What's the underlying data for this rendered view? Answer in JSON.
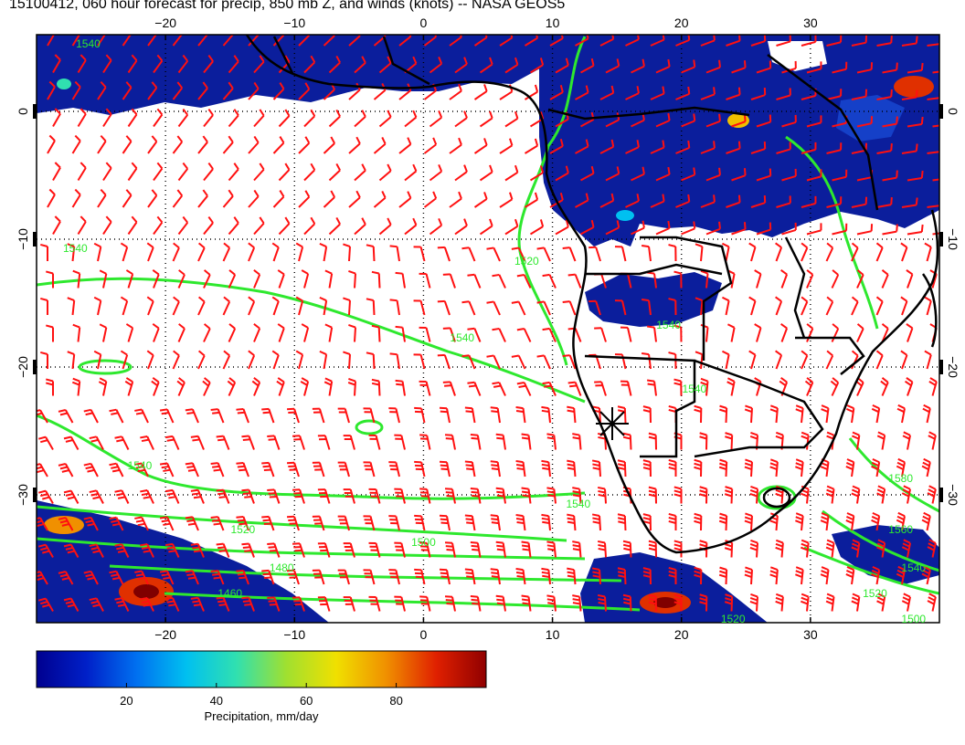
{
  "title": "15100412, 060 hour forecast for precip, 850 mb Z, and winds (knots) -- NASA GEOS5",
  "map": {
    "lon_range": [
      -30,
      40
    ],
    "lat_range": [
      -40,
      6
    ],
    "lon_ticks": [
      {
        "value": -20,
        "label": "−20"
      },
      {
        "value": -10,
        "label": "−10"
      },
      {
        "value": 0,
        "label": "0"
      },
      {
        "value": 10,
        "label": "10"
      },
      {
        "value": 20,
        "label": "20"
      },
      {
        "value": 30,
        "label": "30"
      }
    ],
    "lat_ticks": [
      {
        "value": 0,
        "label": "0"
      },
      {
        "value": -10,
        "label": "−10"
      },
      {
        "value": -20,
        "label": "−20"
      },
      {
        "value": -30,
        "label": "−30"
      }
    ],
    "gridlines": true,
    "colors": {
      "precip_dark": "#0b1e9c",
      "contour": "#2ee82e",
      "wind_barb": "#ff1010",
      "coastline": "#000000"
    }
  },
  "contour_labels": [
    {
      "text": "1540",
      "lon": -26,
      "lat": 5
    },
    {
      "text": "1540",
      "lon": -27,
      "lat": -11
    },
    {
      "text": "1520",
      "lon": 8,
      "lat": -12
    },
    {
      "text": "1540",
      "lon": 3,
      "lat": -18
    },
    {
      "text": "1540",
      "lon": -22,
      "lat": -28
    },
    {
      "text": "1540",
      "lon": 12,
      "lat": -31
    },
    {
      "text": "1520",
      "lon": -14,
      "lat": -33
    },
    {
      "text": "1500",
      "lon": 0,
      "lat": -34
    },
    {
      "text": "1480",
      "lon": -11,
      "lat": -36
    },
    {
      "text": "1460",
      "lon": -15,
      "lat": -38
    },
    {
      "text": "1580",
      "lon": 37,
      "lat": -29
    },
    {
      "text": "1560",
      "lon": 37,
      "lat": -33
    },
    {
      "text": "1540",
      "lon": 38,
      "lat": -36
    },
    {
      "text": "1520",
      "lon": 35,
      "lat": -38
    },
    {
      "text": "1500",
      "lon": 38,
      "lat": -40
    },
    {
      "text": "1540",
      "lon": 21,
      "lat": -22
    },
    {
      "text": "1540",
      "lon": 19,
      "lat": -17
    },
    {
      "text": "1520",
      "lon": 24,
      "lat": -40
    }
  ],
  "colorbar": {
    "label": "Precipitation, mm/day",
    "ticks": [
      {
        "value": 20,
        "label": "20"
      },
      {
        "value": 40,
        "label": "40"
      },
      {
        "value": 60,
        "label": "60"
      },
      {
        "value": 80,
        "label": "80"
      }
    ],
    "range": [
      0,
      100
    ],
    "stops": [
      "#00008f",
      "#0020c8",
      "#0070f0",
      "#00c0f0",
      "#30e0b0",
      "#a0e030",
      "#f0e000",
      "#f09000",
      "#e02000",
      "#900000"
    ]
  }
}
